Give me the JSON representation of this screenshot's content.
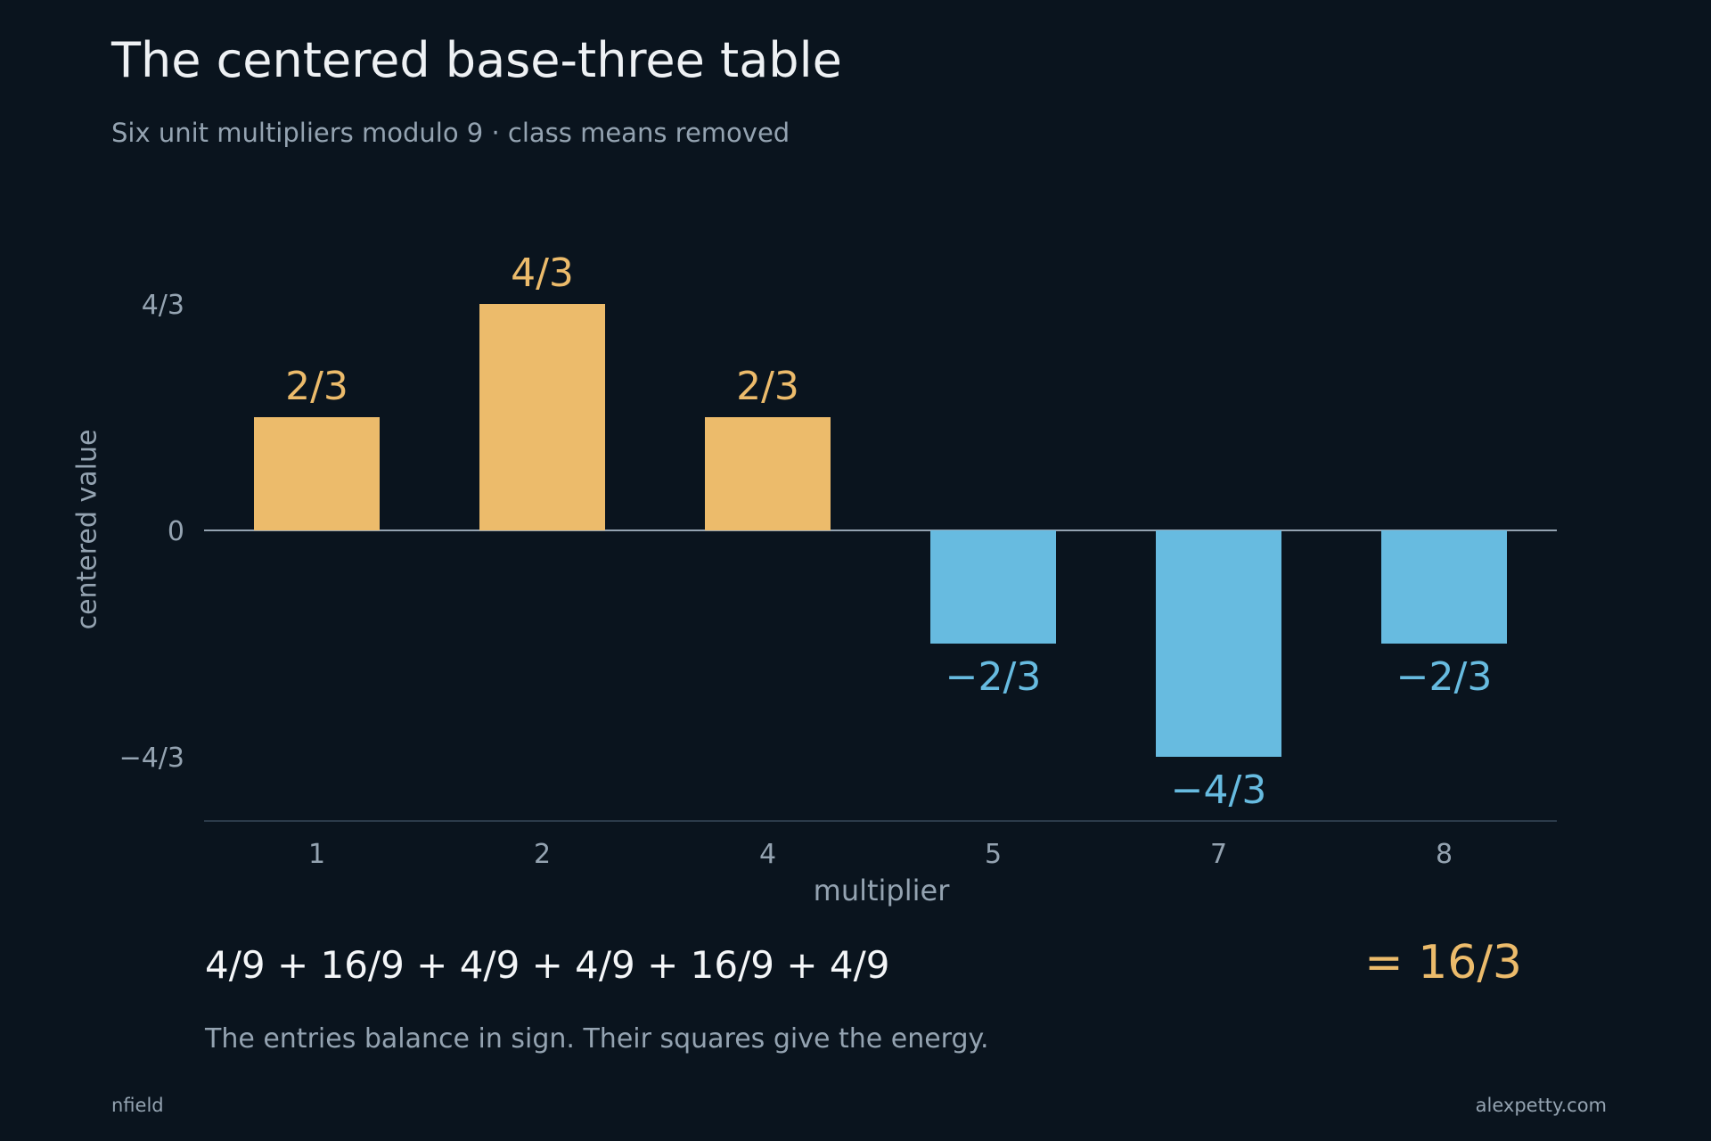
{
  "title": "The centered base-three table",
  "subtitle": "Six unit multipliers modulo 9 · class means removed",
  "formula": "4/9 + 16/9 + 4/9 + 4/9 + 16/9 + 4/9",
  "result": "= 16/3",
  "caption": "The entries balance in sign. Their squares give the energy.",
  "footer": {
    "left": "nfield",
    "right": "alexpetty.com"
  },
  "colors": {
    "positive": "#ecbb6b",
    "negative": "#67bbe0",
    "background": "#0a141e",
    "axis": "#94a3b1"
  },
  "chart_data": {
    "type": "bar",
    "categories": [
      "1",
      "2",
      "4",
      "5",
      "7",
      "8"
    ],
    "values": [
      0.6667,
      1.3333,
      0.6667,
      -0.6667,
      -1.3333,
      -0.6667
    ],
    "value_labels": [
      "2/3",
      "4/3",
      "2/3",
      "−2/3",
      "−4/3",
      "−2/3"
    ],
    "xlabel": "multiplier",
    "ylabel": "centered value",
    "yticks": [
      {
        "value": 1.3333,
        "label": "4/3"
      },
      {
        "value": 0,
        "label": "0"
      },
      {
        "value": -1.3333,
        "label": "−4/3"
      }
    ],
    "ylim": [
      -1.73,
      1.8
    ],
    "grid": false
  }
}
